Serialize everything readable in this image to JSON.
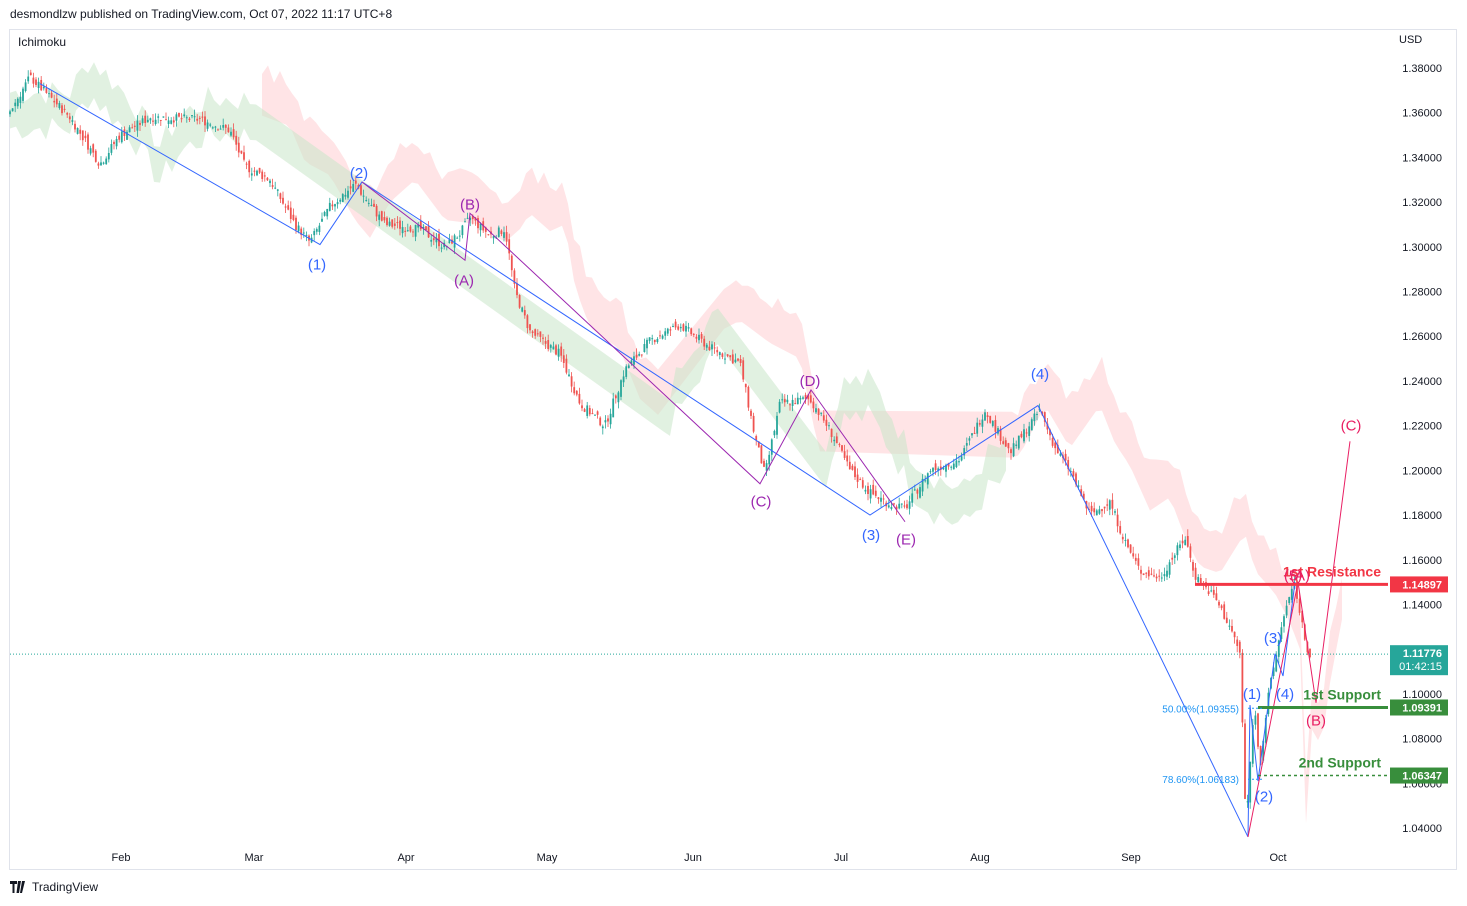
{
  "header": {
    "published": "desmondlzw published on TradingView.com, Oct 07, 2022 11:17 UTC+8",
    "indicator": "Ichimoku",
    "currency": "USD",
    "brand": "TradingView"
  },
  "colors": {
    "up": "#26a69a",
    "down": "#ef5350",
    "wave_blue": "#3366ff",
    "wave_purple": "#9c27b0",
    "wave_pink": "#e91e63",
    "resistance": "#f23645",
    "support": "#388e3c",
    "cloud_red": "#ffcdd2",
    "cloud_green": "#c8e6c9"
  },
  "chart_data": {
    "type": "candlestick",
    "title": "Ichimoku",
    "ylabel": "USD",
    "ylim": [
      1.03,
      1.39
    ],
    "y_ticks": [
      "1.38000",
      "1.36000",
      "1.34000",
      "1.32000",
      "1.30000",
      "1.28000",
      "1.26000",
      "1.24000",
      "1.22000",
      "1.20000",
      "1.18000",
      "1.16000",
      "1.14000",
      "1.12000",
      "1.10000",
      "1.08000",
      "1.06000",
      "1.04000"
    ],
    "x_ticks": [
      "Feb",
      "Mar",
      "Apr",
      "May",
      "Jun",
      "Jul",
      "Aug",
      "Sep",
      "Oct"
    ],
    "price_path": [
      [
        0,
        1.353
      ],
      [
        30,
        1.376
      ],
      [
        70,
        1.358
      ],
      [
        100,
        1.337
      ],
      [
        120,
        1.35
      ],
      [
        150,
        1.358
      ],
      [
        200,
        1.357
      ],
      [
        230,
        1.352
      ],
      [
        245,
        1.336
      ],
      [
        270,
        1.33
      ],
      [
        295,
        1.31
      ],
      [
        310,
        1.302
      ],
      [
        330,
        1.318
      ],
      [
        355,
        1.328
      ],
      [
        385,
        1.31
      ],
      [
        420,
        1.308
      ],
      [
        445,
        1.3
      ],
      [
        460,
        1.306
      ],
      [
        470,
        1.313
      ],
      [
        490,
        1.305
      ],
      [
        505,
        1.308
      ],
      [
        515,
        1.28
      ],
      [
        530,
        1.262
      ],
      [
        560,
        1.252
      ],
      [
        580,
        1.23
      ],
      [
        605,
        1.22
      ],
      [
        625,
        1.245
      ],
      [
        650,
        1.258
      ],
      [
        680,
        1.265
      ],
      [
        710,
        1.255
      ],
      [
        740,
        1.248
      ],
      [
        755,
        1.215
      ],
      [
        765,
        1.198
      ],
      [
        780,
        1.23
      ],
      [
        810,
        1.232
      ],
      [
        830,
        1.218
      ],
      [
        850,
        1.2
      ],
      [
        870,
        1.19
      ],
      [
        890,
        1.185
      ],
      [
        905,
        1.183
      ],
      [
        930,
        1.2
      ],
      [
        960,
        1.205
      ],
      [
        985,
        1.227
      ],
      [
        1010,
        1.208
      ],
      [
        1040,
        1.227
      ],
      [
        1055,
        1.21
      ],
      [
        1070,
        1.2
      ],
      [
        1090,
        1.18
      ],
      [
        1110,
        1.186
      ],
      [
        1125,
        1.168
      ],
      [
        1140,
        1.155
      ],
      [
        1160,
        1.152
      ],
      [
        1185,
        1.17
      ],
      [
        1195,
        1.153
      ],
      [
        1215,
        1.143
      ],
      [
        1230,
        1.13
      ],
      [
        1240,
        1.118
      ],
      [
        1246,
        1.04
      ],
      [
        1254,
        1.096
      ],
      [
        1260,
        1.068
      ],
      [
        1268,
        1.098
      ],
      [
        1275,
        1.115
      ],
      [
        1284,
        1.136
      ],
      [
        1295,
        1.149
      ],
      [
        1303,
        1.128
      ],
      [
        1310,
        1.116
      ]
    ],
    "waves": [
      {
        "name": "blue-primary",
        "color": "#3366ff",
        "points": [
          [
            1.373,
            40
          ],
          [
            1.301,
            320
          ],
          [
            1.329,
            362
          ],
          [
            1.18,
            870
          ],
          [
            1.229,
            1038
          ],
          [
            1.036,
            1248
          ]
        ]
      },
      {
        "name": "purple-correction",
        "color": "#9c27b0",
        "points": [
          [
            1.329,
            362
          ],
          [
            1.294,
            465
          ],
          [
            1.315,
            470
          ],
          [
            1.194,
            760
          ],
          [
            1.236,
            811
          ],
          [
            1.177,
            905
          ]
        ]
      },
      {
        "name": "blue-minor",
        "color": "#3366ff",
        "points": [
          [
            1.036,
            1248
          ],
          [
            1.095,
            1250
          ],
          [
            1.061,
            1258
          ],
          [
            1.118,
            1275
          ],
          [
            1.108,
            1283
          ],
          [
            1.15,
            1295
          ]
        ]
      },
      {
        "name": "pink-projection",
        "color": "#e91e63",
        "points": [
          [
            1.036,
            1248
          ],
          [
            1.15,
            1298
          ],
          [
            1.096,
            1316
          ],
          [
            1.213,
            1350
          ]
        ]
      }
    ],
    "wave_labels": [
      {
        "text": "(1)",
        "x": 317,
        "y": 1.292,
        "color": "#3366ff"
      },
      {
        "text": "(2)",
        "x": 359,
        "y": 1.333,
        "color": "#3366ff"
      },
      {
        "text": "(3)",
        "x": 871,
        "y": 1.171,
        "color": "#3366ff"
      },
      {
        "text": "(4)",
        "x": 1040,
        "y": 1.243,
        "color": "#3366ff"
      },
      {
        "text": "(B)",
        "x": 470,
        "y": 1.319,
        "color": "#9c27b0"
      },
      {
        "text": "(A)",
        "x": 464,
        "y": 1.285,
        "color": "#9c27b0"
      },
      {
        "text": "(C)",
        "x": 761,
        "y": 1.186,
        "color": "#9c27b0"
      },
      {
        "text": "(D)",
        "x": 810,
        "y": 1.24,
        "color": "#9c27b0"
      },
      {
        "text": "(E)",
        "x": 906,
        "y": 1.169,
        "color": "#9c27b0"
      },
      {
        "text": "(1)",
        "x": 1252,
        "y": 1.1,
        "color": "#3366ff"
      },
      {
        "text": "(2)",
        "x": 1264,
        "y": 1.054,
        "color": "#3366ff"
      },
      {
        "text": "(3)",
        "x": 1273,
        "y": 1.125,
        "color": "#3366ff"
      },
      {
        "text": "(4)",
        "x": 1285,
        "y": 1.1,
        "color": "#3366ff"
      },
      {
        "text": "(5)",
        "x": 1293,
        "y": 1.153,
        "color": "#e91e63"
      },
      {
        "text": "(A)",
        "x": 1300,
        "y": 1.153,
        "color": "#e91e63"
      },
      {
        "text": "(B)",
        "x": 1316,
        "y": 1.088,
        "color": "#e91e63"
      },
      {
        "text": "(C)",
        "x": 1351,
        "y": 1.22,
        "color": "#e91e63"
      }
    ],
    "levels": [
      {
        "label": "1st Resistance",
        "value": "1.14897",
        "y": 1.14897,
        "color": "#f23645"
      },
      {
        "label": "1st Support",
        "value": "1.09391",
        "y": 1.09391,
        "color": "#388e3c"
      },
      {
        "label": "2nd Support",
        "value": "1.06347",
        "y": 1.06347,
        "color": "#388e3c"
      }
    ],
    "fibs": [
      {
        "label": "50.00%(1.09355)",
        "y": 1.09355
      },
      {
        "label": "78.60%(1.06183)",
        "y": 1.06183
      }
    ],
    "current_price": {
      "value": "1.11776",
      "countdown": "01:42:15",
      "y": 1.11776
    }
  }
}
